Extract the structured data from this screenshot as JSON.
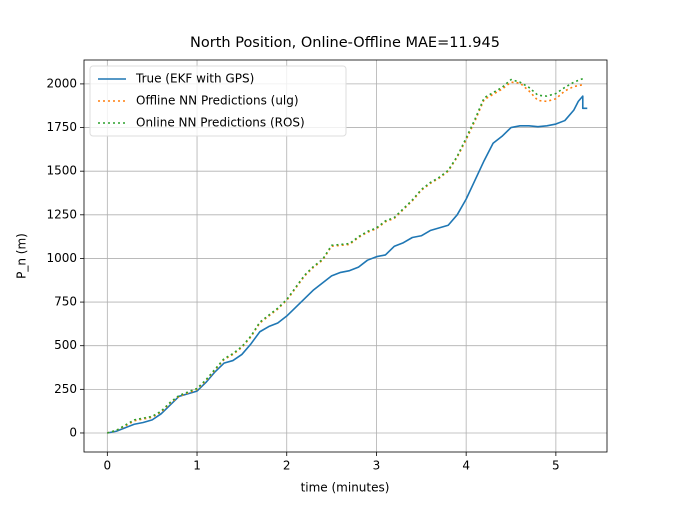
{
  "chart_data": {
    "type": "line",
    "title": "North Position, Online-Offline  MAE=11.945",
    "xlabel": "time (minutes)",
    "ylabel": "P_n (m)",
    "xlim": [
      -0.26,
      5.57
    ],
    "ylim": [
      -109,
      2137
    ],
    "xticks": [
      0,
      1,
      2,
      3,
      4,
      5
    ],
    "yticks": [
      0,
      250,
      500,
      750,
      1000,
      1250,
      1500,
      1750,
      2000
    ],
    "grid": true,
    "legend": "upper left",
    "series": [
      {
        "name": "True (EKF with GPS)",
        "color": "#1f77b4",
        "linestyle": "solid",
        "x": [
          0,
          0.1,
          0.2,
          0.3,
          0.4,
          0.5,
          0.6,
          0.7,
          0.8,
          0.9,
          1.0,
          1.1,
          1.2,
          1.3,
          1.4,
          1.5,
          1.6,
          1.7,
          1.8,
          1.9,
          2.0,
          2.1,
          2.2,
          2.3,
          2.4,
          2.5,
          2.6,
          2.7,
          2.8,
          2.9,
          3.0,
          3.1,
          3.2,
          3.3,
          3.4,
          3.5,
          3.6,
          3.7,
          3.8,
          3.9,
          4.0,
          4.1,
          4.2,
          4.3,
          4.4,
          4.5,
          4.6,
          4.7,
          4.8,
          4.9,
          5.0,
          5.1,
          5.2,
          5.25,
          5.3,
          5.3,
          5.35
        ],
        "values": [
          0,
          10,
          30,
          50,
          60,
          75,
          110,
          160,
          210,
          225,
          240,
          290,
          350,
          400,
          415,
          450,
          510,
          580,
          610,
          630,
          670,
          720,
          770,
          820,
          860,
          900,
          920,
          930,
          950,
          990,
          1010,
          1020,
          1070,
          1090,
          1120,
          1130,
          1160,
          1175,
          1190,
          1250,
          1340,
          1450,
          1560,
          1660,
          1700,
          1750,
          1760,
          1760,
          1755,
          1760,
          1770,
          1790,
          1850,
          1900,
          1930,
          1860,
          1860
        ]
      },
      {
        "name": "Offline NN Predictions (ulg)",
        "color": "#ff7f0e",
        "linestyle": "dotted",
        "x": [
          0,
          0.1,
          0.2,
          0.3,
          0.4,
          0.5,
          0.6,
          0.7,
          0.8,
          0.9,
          1.0,
          1.1,
          1.2,
          1.3,
          1.4,
          1.5,
          1.6,
          1.7,
          1.8,
          1.9,
          2.0,
          2.1,
          2.2,
          2.3,
          2.4,
          2.5,
          2.6,
          2.7,
          2.8,
          2.9,
          3.0,
          3.1,
          3.2,
          3.3,
          3.4,
          3.5,
          3.6,
          3.7,
          3.8,
          3.9,
          4.0,
          4.1,
          4.2,
          4.3,
          4.4,
          4.5,
          4.6,
          4.7,
          4.8,
          4.9,
          5.0,
          5.1,
          5.2,
          5.3
        ],
        "values": [
          0,
          15,
          40,
          70,
          80,
          90,
          120,
          170,
          210,
          230,
          250,
          300,
          360,
          420,
          450,
          490,
          550,
          630,
          670,
          710,
          760,
          830,
          900,
          950,
          990,
          1070,
          1075,
          1080,
          1120,
          1150,
          1170,
          1210,
          1230,
          1280,
          1330,
          1390,
          1430,
          1460,
          1500,
          1580,
          1680,
          1790,
          1910,
          1940,
          1970,
          2010,
          2005,
          1960,
          1905,
          1900,
          1915,
          1960,
          1985,
          1995
        ]
      },
      {
        "name": "Online NN Predictions (ROS)",
        "color": "#2ca02c",
        "linestyle": "dotted",
        "x": [
          0,
          0.1,
          0.2,
          0.3,
          0.4,
          0.5,
          0.6,
          0.7,
          0.8,
          0.9,
          1.0,
          1.1,
          1.2,
          1.3,
          1.4,
          1.5,
          1.6,
          1.7,
          1.8,
          1.9,
          2.0,
          2.1,
          2.2,
          2.3,
          2.4,
          2.5,
          2.6,
          2.7,
          2.8,
          2.9,
          3.0,
          3.1,
          3.2,
          3.3,
          3.4,
          3.5,
          3.6,
          3.7,
          3.8,
          3.9,
          4.0,
          4.1,
          4.2,
          4.3,
          4.4,
          4.5,
          4.6,
          4.7,
          4.8,
          4.9,
          5.0,
          5.1,
          5.2,
          5.3
        ],
        "values": [
          0,
          15,
          45,
          75,
          85,
          95,
          125,
          175,
          215,
          235,
          255,
          305,
          365,
          425,
          455,
          495,
          555,
          635,
          675,
          715,
          765,
          835,
          905,
          955,
          995,
          1075,
          1080,
          1085,
          1125,
          1155,
          1175,
          1215,
          1235,
          1285,
          1335,
          1395,
          1435,
          1465,
          1505,
          1585,
          1690,
          1800,
          1920,
          1950,
          1980,
          2025,
          2010,
          1980,
          1935,
          1930,
          1945,
          1980,
          2010,
          2030
        ]
      }
    ]
  }
}
